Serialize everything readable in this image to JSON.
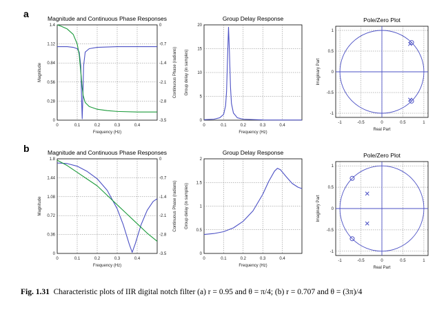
{
  "caption": {
    "label": "Fig. 1.31",
    "text": "Characteristic plots of IIR digital notch filter (a) r = 0.95 and θ = π/4; (b) r = 0.707 and θ = (3π)/4"
  },
  "colors": {
    "blue": "#4a4fc4",
    "green": "#1a9a3a",
    "grid": "#777777"
  },
  "chart_data": [
    {
      "row": "a",
      "type": "line",
      "title": "Magnitude and Continuous Phase  Responses",
      "xlabel": "Frequency (Hz)",
      "ylabel": "Magnitude",
      "ylabel_right": "Continuous Phase (radians)",
      "xlim": [
        0,
        0.5
      ],
      "ylim": [
        0,
        1.4
      ],
      "ylim_right": [
        -3.5,
        0
      ],
      "xticks": [
        0,
        0.1,
        0.2,
        0.3,
        0.4
      ],
      "xticklabels": [
        "0",
        "0.1",
        "0.2",
        "0.3",
        "0.4"
      ],
      "yticks": [
        0,
        0.28,
        0.56,
        0.84,
        1.12,
        1.4
      ],
      "yticklabels": [
        "0",
        "0.28",
        "0.56",
        "0.84",
        "1.12",
        "1.4"
      ],
      "yticks_right": [
        -3.5,
        -2.8,
        -2.1,
        -1.4,
        -0.7,
        0
      ],
      "yticklabels_right": [
        "-3.5",
        "-2.8",
        "-2.1",
        "-1.4",
        "-0.7",
        "0"
      ],
      "grid": true,
      "series": [
        {
          "axis": "left",
          "color": "blue",
          "x": [
            0,
            0.05,
            0.08,
            0.1,
            0.11,
            0.118,
            0.122,
            0.125,
            0.128,
            0.132,
            0.14,
            0.16,
            0.2,
            0.3,
            0.4,
            0.5
          ],
          "y": [
            1.08,
            1.08,
            1.07,
            1.05,
            1.0,
            0.8,
            0.3,
            0.02,
            0.3,
            0.8,
            1.0,
            1.05,
            1.07,
            1.08,
            1.08,
            1.08
          ]
        },
        {
          "axis": "right",
          "color": "green",
          "x": [
            0,
            0.02,
            0.05,
            0.08,
            0.1,
            0.11,
            0.12,
            0.125,
            0.13,
            0.14,
            0.16,
            0.2,
            0.25,
            0.3,
            0.4,
            0.5
          ],
          "y": [
            0,
            -0.05,
            -0.15,
            -0.35,
            -0.7,
            -1.1,
            -1.9,
            -2.3,
            -2.6,
            -2.85,
            -3.0,
            -3.1,
            -3.15,
            -3.18,
            -3.2,
            -3.2
          ]
        }
      ]
    },
    {
      "row": "a",
      "type": "line",
      "title": "Group Delay Response",
      "xlabel": "Frequency (Hz)",
      "ylabel": "Group delay (in samples)",
      "xlim": [
        0,
        0.5
      ],
      "ylim": [
        0,
        20
      ],
      "xticks": [
        0,
        0.1,
        0.2,
        0.3,
        0.4
      ],
      "xticklabels": [
        "0",
        "0.1",
        "0.2",
        "0.3",
        "0.4"
      ],
      "yticks": [
        0,
        5,
        10,
        15,
        20
      ],
      "yticklabels": [
        "0",
        "5",
        "10",
        "15",
        "20"
      ],
      "grid": true,
      "series": [
        {
          "color": "blue",
          "x": [
            0,
            0.05,
            0.08,
            0.1,
            0.11,
            0.115,
            0.12,
            0.125,
            0.13,
            0.135,
            0.14,
            0.15,
            0.17,
            0.2,
            0.3,
            0.4,
            0.5
          ],
          "y": [
            0.1,
            0.2,
            0.5,
            1.2,
            3,
            6,
            13,
            19.5,
            14,
            7,
            3.5,
            1.5,
            0.5,
            0.2,
            0.05,
            0.02,
            0.02
          ]
        }
      ]
    },
    {
      "row": "a",
      "type": "scatter",
      "title": "Pole/Zero Plot",
      "xlabel": "Real Part",
      "ylabel": "Imaginary Part",
      "xlim": [
        -1.1,
        1.1
      ],
      "ylim": [
        -1.1,
        1.1
      ],
      "xticks": [
        -1,
        -0.5,
        0,
        0.5,
        1
      ],
      "xticklabels": [
        "-1",
        "-0.5",
        "0",
        "0.5",
        "1"
      ],
      "yticks": [
        -1,
        -0.5,
        0,
        0.5,
        1
      ],
      "yticklabels": [
        "-1",
        "-0.5",
        "0",
        "0.5",
        "1"
      ],
      "grid": true,
      "unit_circle": true,
      "zeros": [
        [
          0.707,
          0.707
        ],
        [
          0.707,
          -0.707
        ]
      ],
      "poles": [
        [
          0.672,
          0.672
        ],
        [
          0.672,
          -0.672
        ]
      ]
    },
    {
      "row": "b",
      "type": "line",
      "title": "Magnitude and Continuous Phase  Responses",
      "xlabel": "Frequency (Hz)",
      "ylabel": "Magnitude",
      "ylabel_right": "Continuous Phase (radians)",
      "xlim": [
        0,
        0.5
      ],
      "ylim": [
        0,
        1.8
      ],
      "ylim_right": [
        -3.5,
        0
      ],
      "xticks": [
        0,
        0.1,
        0.2,
        0.3,
        0.4
      ],
      "xticklabels": [
        "0",
        "0.1",
        "0.2",
        "0.3",
        "0.4"
      ],
      "yticks": [
        0,
        0.36,
        0.72,
        1.08,
        1.44,
        1.8
      ],
      "yticklabels": [
        "0",
        "0.36",
        "0.72",
        "1.08",
        "1.44",
        "1.8"
      ],
      "yticks_right": [
        -3.5,
        -2.8,
        -2.1,
        -1.4,
        -0.7,
        0
      ],
      "yticklabels_right": [
        "-3.5",
        "-2.8",
        "-2.1",
        "-1.4",
        "-0.7",
        "0"
      ],
      "grid": true,
      "series": [
        {
          "axis": "left",
          "color": "blue",
          "x": [
            0,
            0.05,
            0.1,
            0.15,
            0.2,
            0.25,
            0.3,
            0.33,
            0.36,
            0.375,
            0.39,
            0.42,
            0.45,
            0.48,
            0.5
          ],
          "y": [
            1.72,
            1.71,
            1.66,
            1.56,
            1.42,
            1.2,
            0.85,
            0.55,
            0.18,
            0.02,
            0.18,
            0.55,
            0.82,
            0.99,
            1.04
          ]
        },
        {
          "axis": "right",
          "color": "green",
          "x": [
            0,
            0.05,
            0.1,
            0.15,
            0.2,
            0.25,
            0.3,
            0.35,
            0.4,
            0.45,
            0.5
          ],
          "y": [
            -0.05,
            -0.25,
            -0.5,
            -0.75,
            -1.0,
            -1.35,
            -1.7,
            -2.05,
            -2.4,
            -2.75,
            -3.05
          ]
        }
      ]
    },
    {
      "row": "b",
      "type": "line",
      "title": "Group Delay Response",
      "xlabel": "Frequency (Hz)",
      "ylabel": "Group delay (in samples)",
      "xlim": [
        0,
        0.5
      ],
      "ylim": [
        0,
        2
      ],
      "xticks": [
        0,
        0.1,
        0.2,
        0.3,
        0.4
      ],
      "xticklabels": [
        "0",
        "0.1",
        "0.2",
        "0.3",
        "0.4"
      ],
      "yticks": [
        0,
        0.5,
        1,
        1.5,
        2
      ],
      "yticklabels": [
        "0",
        "0.5",
        "1",
        "1.5",
        "2"
      ],
      "grid": true,
      "series": [
        {
          "color": "blue",
          "x": [
            0,
            0.05,
            0.1,
            0.15,
            0.2,
            0.25,
            0.3,
            0.33,
            0.36,
            0.375,
            0.39,
            0.42,
            0.45,
            0.48,
            0.5
          ],
          "y": [
            0.4,
            0.42,
            0.46,
            0.54,
            0.68,
            0.9,
            1.25,
            1.52,
            1.74,
            1.8,
            1.77,
            1.62,
            1.48,
            1.4,
            1.37
          ]
        }
      ]
    },
    {
      "row": "b",
      "type": "scatter",
      "title": "Pole/Zero Plot",
      "xlabel": "Real Part",
      "ylabel": "Imaginary Part",
      "xlim": [
        -1.1,
        1.1
      ],
      "ylim": [
        -1.1,
        1.1
      ],
      "xticks": [
        -1,
        -0.5,
        0,
        0.5,
        1
      ],
      "xticklabels": [
        "-1",
        "-0.5",
        "0",
        "0.5",
        "1"
      ],
      "yticks": [
        -1,
        -0.5,
        0,
        0.5,
        1
      ],
      "yticklabels": [
        "-1",
        "-0.5",
        "0",
        "0.5",
        "1"
      ],
      "grid": true,
      "unit_circle": true,
      "zeros": [
        [
          -0.707,
          0.707
        ],
        [
          -0.707,
          -0.707
        ]
      ],
      "poles": [
        [
          -0.35,
          0.35
        ],
        [
          -0.35,
          -0.35
        ]
      ]
    }
  ]
}
